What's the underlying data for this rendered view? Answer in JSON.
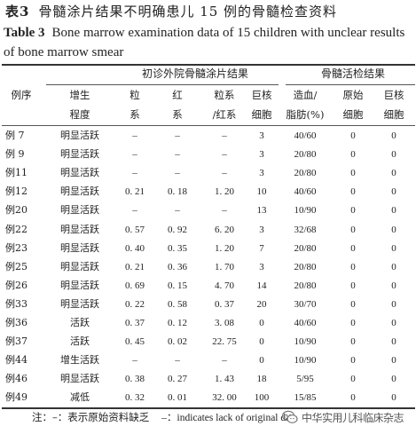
{
  "title": {
    "cn_label": "表3",
    "cn_text": "骨髓涂片结果不明确患儿 15 例的骨髓检查资料",
    "en_label": "Table 3",
    "en_text": "Bone marrow examination data of 15 children with unclear results of bone marrow smear"
  },
  "headers": {
    "group_smear": "初诊外院骨髓涂片结果",
    "group_biopsy": "骨髓活检结果",
    "case": "例序",
    "prolif_1": "增生",
    "prolif_2": "程度",
    "gran_1": "粒",
    "gran_2": "系",
    "red_1": "红",
    "red_2": "系",
    "ratio_1": "粒系",
    "ratio_2": "/红系",
    "mega_1": "巨核",
    "mega_2": "细胞",
    "hema_1": "造血/",
    "hema_2": "脂肪(%)",
    "prim_1": "原始",
    "prim_2": "细胞",
    "giant_1": "巨核",
    "giant_2": "细胞"
  },
  "rows": [
    {
      "id": "例 7",
      "grade": "明显活跃",
      "gran": "–",
      "red": "–",
      "ratio": "–",
      "mega": "3",
      "hema": "40/60",
      "prim": "0",
      "giant": "0"
    },
    {
      "id": "例 9",
      "grade": "明显活跃",
      "gran": "–",
      "red": "–",
      "ratio": "–",
      "mega": "3",
      "hema": "20/80",
      "prim": "0",
      "giant": "0"
    },
    {
      "id": "例11",
      "grade": "明显活跃",
      "gran": "–",
      "red": "–",
      "ratio": "–",
      "mega": "3",
      "hema": "20/80",
      "prim": "0",
      "giant": "0"
    },
    {
      "id": "例12",
      "grade": "明显活跃",
      "gran": "0. 21",
      "red": "0. 18",
      "ratio": "1. 20",
      "mega": "10",
      "hema": "40/60",
      "prim": "0",
      "giant": "0"
    },
    {
      "id": "例20",
      "grade": "明显活跃",
      "gran": "–",
      "red": "–",
      "ratio": "–",
      "mega": "13",
      "hema": "10/90",
      "prim": "0",
      "giant": "0"
    },
    {
      "id": "例22",
      "grade": "明显活跃",
      "gran": "0. 57",
      "red": "0. 92",
      "ratio": "6. 20",
      "mega": "3",
      "hema": "32/68",
      "prim": "0",
      "giant": "0"
    },
    {
      "id": "例23",
      "grade": "明显活跃",
      "gran": "0. 40",
      "red": "0. 35",
      "ratio": "1. 20",
      "mega": "7",
      "hema": "20/80",
      "prim": "0",
      "giant": "0"
    },
    {
      "id": "例25",
      "grade": "明显活跃",
      "gran": "0. 21",
      "red": "0. 36",
      "ratio": "1. 70",
      "mega": "3",
      "hema": "20/80",
      "prim": "0",
      "giant": "0"
    },
    {
      "id": "例26",
      "grade": "明显活跃",
      "gran": "0. 69",
      "red": "0. 15",
      "ratio": "4. 70",
      "mega": "14",
      "hema": "20/80",
      "prim": "0",
      "giant": "0"
    },
    {
      "id": "例33",
      "grade": "明显活跃",
      "gran": "0. 22",
      "red": "0. 58",
      "ratio": "0. 37",
      "mega": "20",
      "hema": "30/70",
      "prim": "0",
      "giant": "0"
    },
    {
      "id": "例36",
      "grade": "活跃",
      "gran": "0. 37",
      "red": "0. 12",
      "ratio": "3. 08",
      "mega": "0",
      "hema": "40/60",
      "prim": "0",
      "giant": "0"
    },
    {
      "id": "例37",
      "grade": "活跃",
      "gran": "0. 45",
      "red": "0. 02",
      "ratio": "22. 75",
      "mega": "0",
      "hema": "10/90",
      "prim": "0",
      "giant": "0"
    },
    {
      "id": "例44",
      "grade": "增生活跃",
      "gran": "–",
      "red": "–",
      "ratio": "–",
      "mega": "0",
      "hema": "10/90",
      "prim": "0",
      "giant": "0"
    },
    {
      "id": "例46",
      "grade": "明显活跃",
      "gran": "0. 38",
      "red": "0. 27",
      "ratio": "1. 43",
      "mega": "18",
      "hema": "5/95",
      "prim": "0",
      "giant": "0"
    },
    {
      "id": "例49",
      "grade": "减低",
      "gran": "0. 32",
      "red": "0. 01",
      "ratio": "32. 00",
      "mega": "100",
      "hema": "15/85",
      "prim": "0",
      "giant": "0"
    }
  ],
  "footnote": {
    "cn": "注：–：表示原始资料缺乏",
    "en": "–：indicates lack of original data"
  },
  "watermark": {
    "icon": "wechat-icon",
    "text": "中华实用儿科临床杂志"
  }
}
